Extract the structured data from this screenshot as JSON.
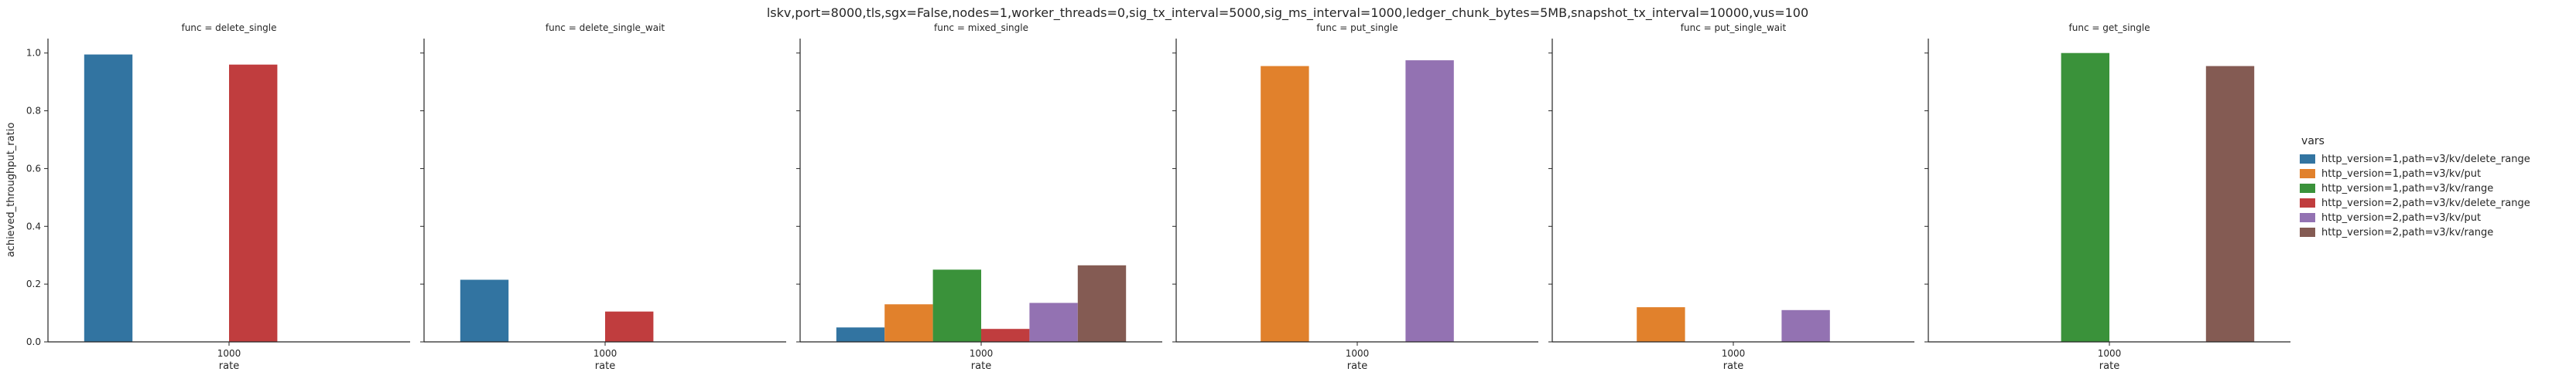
{
  "chart_data": {
    "type": "bar",
    "title": "lskv,port=8000,tls,sgx=False,nodes=1,worker_threads=0,sig_tx_interval=5000,sig_ms_interval=1000,ledger_chunk_bytes=5MB,snapshot_tx_interval=10000,vus=100",
    "ylabel": "achieved_throughput_ratio",
    "xlabel": "rate",
    "categories": [
      "1000"
    ],
    "yticks": [
      "0.0",
      "0.2",
      "0.4",
      "0.6",
      "0.8",
      "1.0"
    ],
    "ylim": [
      0,
      1.05
    ],
    "legend": {
      "title": "vars",
      "placement": "right",
      "entries": [
        {
          "name": "http_version=1,path=v3/kv/delete_range",
          "color": "#3274a1"
        },
        {
          "name": "http_version=1,path=v3/kv/put",
          "color": "#e1812c"
        },
        {
          "name": "http_version=1,path=v3/kv/range",
          "color": "#3a923a"
        },
        {
          "name": "http_version=2,path=v3/kv/delete_range",
          "color": "#c03d3e"
        },
        {
          "name": "http_version=2,path=v3/kv/put",
          "color": "#9372b2"
        },
        {
          "name": "http_version=2,path=v3/kv/range",
          "color": "#845b53"
        }
      ]
    },
    "panels": [
      {
        "title": "func = delete_single",
        "values": [
          0.995,
          null,
          null,
          0.96,
          null,
          null
        ]
      },
      {
        "title": "func = delete_single_wait",
        "values": [
          0.215,
          null,
          null,
          0.105,
          null,
          null
        ]
      },
      {
        "title": "func = mixed_single",
        "values": [
          0.05,
          0.13,
          0.25,
          0.045,
          0.135,
          0.265
        ]
      },
      {
        "title": "func = put_single",
        "values": [
          null,
          0.955,
          null,
          null,
          0.975,
          null
        ]
      },
      {
        "title": "func = put_single_wait",
        "values": [
          null,
          0.12,
          null,
          null,
          0.11,
          null
        ]
      },
      {
        "title": "func = get_single",
        "values": [
          null,
          null,
          1.0,
          null,
          null,
          0.955
        ]
      }
    ]
  }
}
